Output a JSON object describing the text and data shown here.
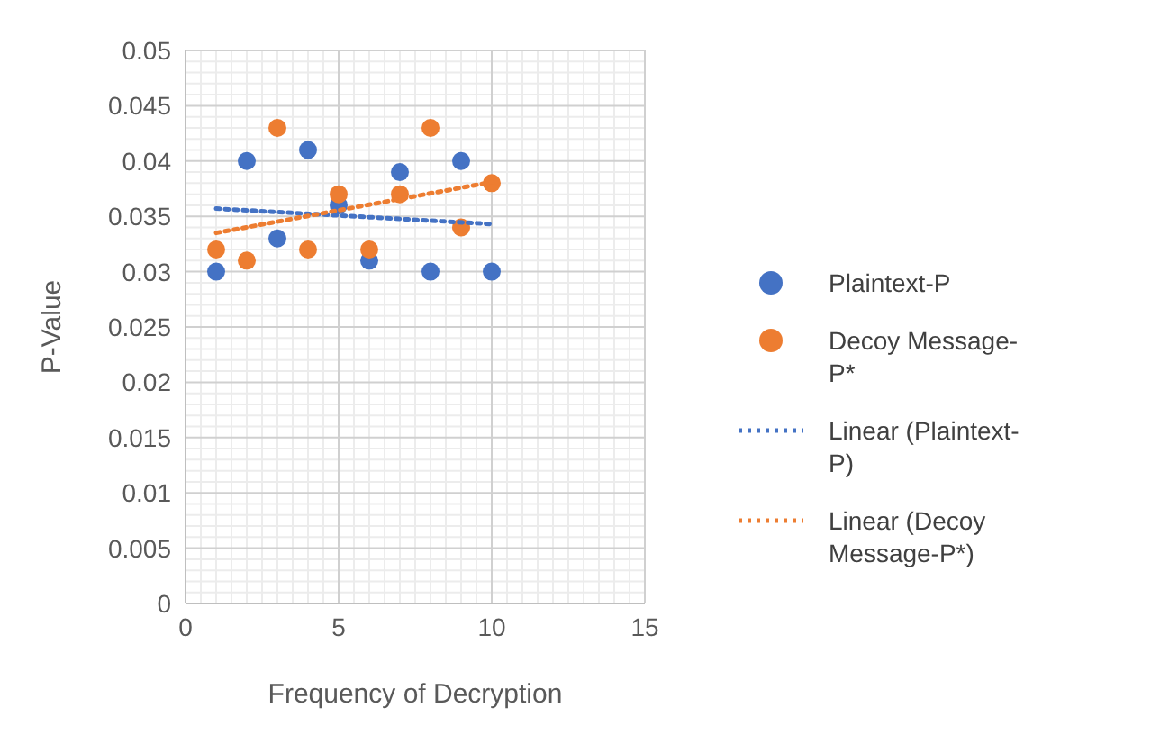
{
  "chart_data": {
    "type": "scatter",
    "xlabel": "Frequency of Decryption",
    "ylabel": "P-Value",
    "xlim": [
      0,
      15
    ],
    "xticks": [
      0,
      5,
      10,
      15
    ],
    "ylim": [
      0,
      0.05
    ],
    "yticks": [
      0,
      0.005,
      0.01,
      0.015,
      0.02,
      0.025,
      0.03,
      0.035,
      0.04,
      0.045,
      0.05
    ],
    "grid": true,
    "legend": "right",
    "marker": "circle",
    "series": [
      {
        "name": "Plaintext-P",
        "color": "#4472c4",
        "x": [
          1,
          2,
          3,
          4,
          5,
          6,
          7,
          8,
          9,
          10
        ],
        "values": [
          0.03,
          0.04,
          0.033,
          0.041,
          0.036,
          0.031,
          0.039,
          0.03,
          0.04,
          0.03
        ]
      },
      {
        "name": "Decoy Message-P*",
        "color": "#ed7d31",
        "x": [
          1,
          2,
          3,
          4,
          5,
          6,
          7,
          8,
          9,
          10
        ],
        "values": [
          0.032,
          0.031,
          0.043,
          0.032,
          0.037,
          0.032,
          0.037,
          0.043,
          0.034,
          0.038
        ]
      },
      {
        "name": "Linear (Plaintext-P)",
        "type": "line",
        "color": "#4472c4",
        "marker": "none",
        "line_style": "dotted",
        "x": [
          1,
          10
        ],
        "values": [
          0.0357,
          0.0343
        ]
      },
      {
        "name": "Linear (Decoy Message-P*)",
        "type": "line",
        "color": "#ed7d31",
        "marker": "none",
        "line_style": "dotted",
        "x": [
          1,
          10
        ],
        "values": [
          0.0335,
          0.0381
        ]
      }
    ]
  }
}
